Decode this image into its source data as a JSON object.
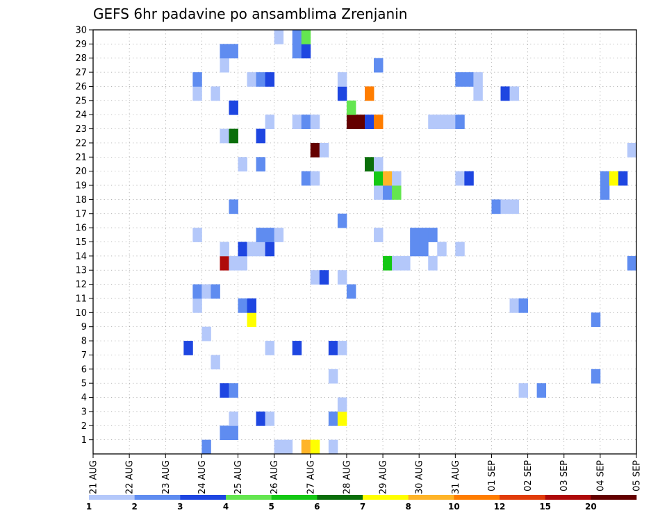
{
  "chart_data": {
    "type": "heatmap",
    "title": "GEFS 6hr padavine po ansamblima Zrenjanin",
    "xlabel": "",
    "ylabel": "",
    "x_tick_labels": [
      "21 AUG",
      "22 AUG",
      "23 AUG",
      "24 AUG",
      "25 AUG",
      "26 AUG",
      "27 AUG",
      "28 AUG",
      "29 AUG",
      "30 AUG",
      "31 AUG",
      "01 SEP",
      "02 SEP",
      "03 SEP",
      "04 SEP",
      "05 SEP"
    ],
    "y_tick_labels": [
      "1",
      "2",
      "3",
      "4",
      "5",
      "6",
      "7",
      "8",
      "9",
      "10",
      "11",
      "12",
      "13",
      "14",
      "15",
      "16",
      "17",
      "18",
      "19",
      "20",
      "21",
      "22",
      "23",
      "24",
      "25",
      "26",
      "27",
      "28",
      "29",
      "30"
    ],
    "time_step_hours": 6,
    "xlim_steps": [
      0,
      60
    ],
    "ylim": [
      0,
      30
    ],
    "grid": true,
    "legend_placement": "bottom",
    "legend_labels": [
      "1",
      "2",
      "3",
      "4",
      "5",
      "6",
      "7",
      "8",
      "10",
      "12",
      "15",
      "20"
    ],
    "legend_colors": [
      "#b4c8fa",
      "#5f8cf0",
      "#1e46e1",
      "#64e650",
      "#14c814",
      "#0a6e0a",
      "#ffff00",
      "#ffb428",
      "#ff7d00",
      "#e13c0a",
      "#af0a0a",
      "#640000"
    ],
    "cells": [
      {
        "step": 12,
        "member": 0,
        "cls": 1
      },
      {
        "step": 20,
        "member": 0,
        "cls": 0
      },
      {
        "step": 21,
        "member": 0,
        "cls": 0
      },
      {
        "step": 23,
        "member": 0,
        "cls": 7
      },
      {
        "step": 24,
        "member": 0,
        "cls": 6
      },
      {
        "step": 26,
        "member": 0,
        "cls": 0
      },
      {
        "step": 14,
        "member": 1,
        "cls": 1
      },
      {
        "step": 15,
        "member": 1,
        "cls": 1
      },
      {
        "step": 15,
        "member": 2,
        "cls": 0
      },
      {
        "step": 18,
        "member": 2,
        "cls": 2
      },
      {
        "step": 19,
        "member": 2,
        "cls": 0
      },
      {
        "step": 26,
        "member": 2,
        "cls": 1
      },
      {
        "step": 27,
        "member": 2,
        "cls": 6
      },
      {
        "step": 27,
        "member": 3,
        "cls": 0
      },
      {
        "step": 14,
        "member": 4,
        "cls": 2
      },
      {
        "step": 15,
        "member": 4,
        "cls": 1
      },
      {
        "step": 47,
        "member": 4,
        "cls": 0
      },
      {
        "step": 49,
        "member": 4,
        "cls": 1
      },
      {
        "step": 26,
        "member": 5,
        "cls": 0
      },
      {
        "step": 55,
        "member": 5,
        "cls": 1
      },
      {
        "step": 13,
        "member": 6,
        "cls": 0
      },
      {
        "step": 10,
        "member": 7,
        "cls": 2
      },
      {
        "step": 19,
        "member": 7,
        "cls": 0
      },
      {
        "step": 22,
        "member": 7,
        "cls": 2
      },
      {
        "step": 26,
        "member": 7,
        "cls": 2
      },
      {
        "step": 27,
        "member": 7,
        "cls": 0
      },
      {
        "step": 12,
        "member": 8,
        "cls": 0
      },
      {
        "step": 17,
        "member": 9,
        "cls": 6
      },
      {
        "step": 55,
        "member": 9,
        "cls": 1
      },
      {
        "step": 11,
        "member": 10,
        "cls": 0
      },
      {
        "step": 16,
        "member": 10,
        "cls": 1
      },
      {
        "step": 17,
        "member": 10,
        "cls": 2
      },
      {
        "step": 46,
        "member": 10,
        "cls": 0
      },
      {
        "step": 47,
        "member": 10,
        "cls": 1
      },
      {
        "step": 11,
        "member": 11,
        "cls": 1
      },
      {
        "step": 12,
        "member": 11,
        "cls": 0
      },
      {
        "step": 13,
        "member": 11,
        "cls": 1
      },
      {
        "step": 28,
        "member": 11,
        "cls": 1
      },
      {
        "step": 24,
        "member": 12,
        "cls": 0
      },
      {
        "step": 25,
        "member": 12,
        "cls": 2
      },
      {
        "step": 27,
        "member": 12,
        "cls": 0
      },
      {
        "step": 14,
        "member": 13,
        "cls": 10
      },
      {
        "step": 15,
        "member": 13,
        "cls": 0
      },
      {
        "step": 16,
        "member": 13,
        "cls": 0
      },
      {
        "step": 32,
        "member": 13,
        "cls": 4
      },
      {
        "step": 33,
        "member": 13,
        "cls": 0
      },
      {
        "step": 34,
        "member": 13,
        "cls": 0
      },
      {
        "step": 37,
        "member": 13,
        "cls": 0
      },
      {
        "step": 59,
        "member": 13,
        "cls": 1
      },
      {
        "step": 14,
        "member": 14,
        "cls": 0
      },
      {
        "step": 16,
        "member": 14,
        "cls": 2
      },
      {
        "step": 17,
        "member": 14,
        "cls": 0
      },
      {
        "step": 18,
        "member": 14,
        "cls": 0
      },
      {
        "step": 19,
        "member": 14,
        "cls": 2
      },
      {
        "step": 35,
        "member": 14,
        "cls": 1
      },
      {
        "step": 36,
        "member": 14,
        "cls": 1
      },
      {
        "step": 38,
        "member": 14,
        "cls": 0
      },
      {
        "step": 40,
        "member": 14,
        "cls": 0
      },
      {
        "step": 11,
        "member": 15,
        "cls": 0
      },
      {
        "step": 18,
        "member": 15,
        "cls": 1
      },
      {
        "step": 19,
        "member": 15,
        "cls": 1
      },
      {
        "step": 20,
        "member": 15,
        "cls": 0
      },
      {
        "step": 31,
        "member": 15,
        "cls": 0
      },
      {
        "step": 35,
        "member": 15,
        "cls": 1
      },
      {
        "step": 36,
        "member": 15,
        "cls": 1
      },
      {
        "step": 37,
        "member": 15,
        "cls": 1
      },
      {
        "step": 27,
        "member": 16,
        "cls": 1
      },
      {
        "step": 15,
        "member": 17,
        "cls": 1
      },
      {
        "step": 44,
        "member": 17,
        "cls": 1
      },
      {
        "step": 45,
        "member": 17,
        "cls": 0
      },
      {
        "step": 46,
        "member": 17,
        "cls": 0
      },
      {
        "step": 31,
        "member": 18,
        "cls": 0
      },
      {
        "step": 32,
        "member": 18,
        "cls": 1
      },
      {
        "step": 33,
        "member": 18,
        "cls": 3
      },
      {
        "step": 56,
        "member": 18,
        "cls": 1
      },
      {
        "step": 23,
        "member": 19,
        "cls": 1
      },
      {
        "step": 24,
        "member": 19,
        "cls": 0
      },
      {
        "step": 31,
        "member": 19,
        "cls": 4
      },
      {
        "step": 32,
        "member": 19,
        "cls": 7
      },
      {
        "step": 33,
        "member": 19,
        "cls": 0
      },
      {
        "step": 40,
        "member": 19,
        "cls": 0
      },
      {
        "step": 41,
        "member": 19,
        "cls": 2
      },
      {
        "step": 56,
        "member": 19,
        "cls": 1
      },
      {
        "step": 57,
        "member": 19,
        "cls": 6
      },
      {
        "step": 58,
        "member": 19,
        "cls": 2
      },
      {
        "step": 16,
        "member": 20,
        "cls": 0
      },
      {
        "step": 18,
        "member": 20,
        "cls": 1
      },
      {
        "step": 30,
        "member": 20,
        "cls": 5
      },
      {
        "step": 31,
        "member": 20,
        "cls": 0
      },
      {
        "step": 24,
        "member": 21,
        "cls": 11
      },
      {
        "step": 25,
        "member": 21,
        "cls": 0
      },
      {
        "step": 59,
        "member": 21,
        "cls": 0
      },
      {
        "step": 14,
        "member": 22,
        "cls": 0
      },
      {
        "step": 15,
        "member": 22,
        "cls": 5
      },
      {
        "step": 18,
        "member": 22,
        "cls": 2
      },
      {
        "step": 19,
        "member": 23,
        "cls": 0
      },
      {
        "step": 22,
        "member": 23,
        "cls": 0
      },
      {
        "step": 23,
        "member": 23,
        "cls": 1
      },
      {
        "step": 24,
        "member": 23,
        "cls": 0
      },
      {
        "step": 28,
        "member": 23,
        "cls": 11
      },
      {
        "step": 29,
        "member": 23,
        "cls": 11
      },
      {
        "step": 30,
        "member": 23,
        "cls": 2
      },
      {
        "step": 31,
        "member": 23,
        "cls": 8
      },
      {
        "step": 37,
        "member": 23,
        "cls": 0
      },
      {
        "step": 38,
        "member": 23,
        "cls": 0
      },
      {
        "step": 39,
        "member": 23,
        "cls": 0
      },
      {
        "step": 40,
        "member": 23,
        "cls": 1
      },
      {
        "step": 15,
        "member": 24,
        "cls": 2
      },
      {
        "step": 28,
        "member": 24,
        "cls": 3
      },
      {
        "step": 11,
        "member": 25,
        "cls": 0
      },
      {
        "step": 13,
        "member": 25,
        "cls": 0
      },
      {
        "step": 27,
        "member": 25,
        "cls": 2
      },
      {
        "step": 30,
        "member": 25,
        "cls": 8
      },
      {
        "step": 42,
        "member": 25,
        "cls": 0
      },
      {
        "step": 45,
        "member": 25,
        "cls": 2
      },
      {
        "step": 46,
        "member": 25,
        "cls": 0
      },
      {
        "step": 11,
        "member": 26,
        "cls": 1
      },
      {
        "step": 17,
        "member": 26,
        "cls": 0
      },
      {
        "step": 18,
        "member": 26,
        "cls": 1
      },
      {
        "step": 19,
        "member": 26,
        "cls": 2
      },
      {
        "step": 27,
        "member": 26,
        "cls": 0
      },
      {
        "step": 40,
        "member": 26,
        "cls": 1
      },
      {
        "step": 41,
        "member": 26,
        "cls": 1
      },
      {
        "step": 42,
        "member": 26,
        "cls": 0
      },
      {
        "step": 14,
        "member": 27,
        "cls": 0
      },
      {
        "step": 31,
        "member": 27,
        "cls": 1
      },
      {
        "step": 14,
        "member": 28,
        "cls": 1
      },
      {
        "step": 15,
        "member": 28,
        "cls": 1
      },
      {
        "step": 22,
        "member": 28,
        "cls": 1
      },
      {
        "step": 23,
        "member": 28,
        "cls": 2
      },
      {
        "step": 20,
        "member": 29,
        "cls": 0
      },
      {
        "step": 22,
        "member": 29,
        "cls": 1
      },
      {
        "step": 23,
        "member": 29,
        "cls": 3
      }
    ]
  }
}
